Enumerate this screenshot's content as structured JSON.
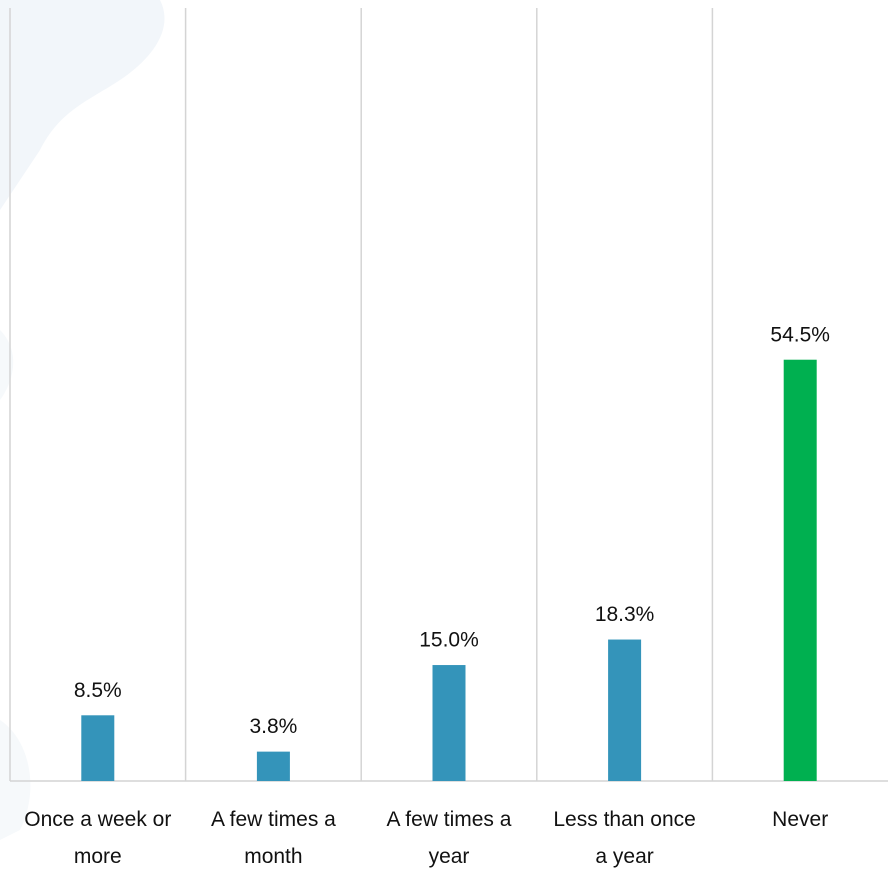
{
  "chart_data": {
    "type": "bar",
    "categories": [
      "Once a week or more",
      "A few times a month",
      "A few times a year",
      "Less than once a year",
      "Never"
    ],
    "values": [
      8.5,
      3.8,
      15.0,
      18.3,
      54.5
    ],
    "value_labels": [
      "8.5%",
      "3.8%",
      "15.0%",
      "18.3%",
      "54.5%"
    ],
    "colors": [
      "#3494ba",
      "#3494ba",
      "#3494ba",
      "#3494ba",
      "#00b050"
    ],
    "ylim": [
      0,
      100
    ]
  }
}
